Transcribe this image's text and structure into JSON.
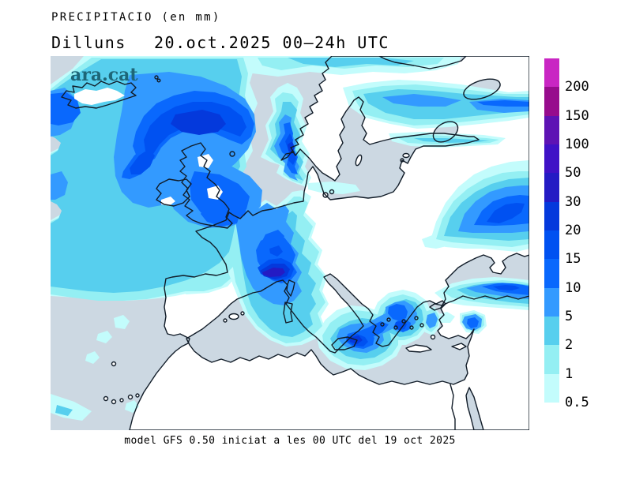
{
  "header": {
    "product": "PRECIPITACIO (en mm)",
    "day": "Dilluns",
    "datetime": "20.oct.2025 00–24h UTC"
  },
  "watermark": {
    "text": "ara.cat",
    "color": "#1e6678"
  },
  "footer": {
    "caption": "model GFS 0.50 iniciat a les 00 UTC del 19 oct 2025"
  },
  "map": {
    "sea_color": "#ccd8e2",
    "land_color": "#ffffff",
    "coast_color": "#111c28"
  },
  "legend": {
    "labels_top_to_bottom": [
      "200",
      "150",
      "100",
      "50",
      "30",
      "20",
      "15",
      "10",
      "5",
      "2",
      "1",
      "0.5"
    ]
  },
  "chart_data": {
    "type": "heatmap",
    "title": "PRECIPITACIO (en mm)",
    "valid_label": "Dilluns 20.oct.2025 00–24h UTC",
    "model_label": "model GFS 0.50 iniciat a les 00 UTC del 19 oct 2025",
    "units": "mm",
    "region": "Europe / North Atlantic / Mediterranean / North Africa",
    "scale_levels": [
      0.5,
      1,
      2,
      5,
      10,
      15,
      20,
      30,
      50,
      100,
      150,
      200
    ],
    "scale_colors": [
      "#c3fcfc",
      "#94eff3",
      "#57cfee",
      "#339aff",
      "#0968fd",
      "#0051f1",
      "#0439dc",
      "#241bc4",
      "#3f12c6",
      "#5e13b4",
      "#970c8d",
      "#c926c3"
    ],
    "legend_position": "right",
    "features": [
      {
        "region": "North Atlantic south-east of Iceland",
        "precip_mm": "20-30"
      },
      {
        "region": "Iceland west coast",
        "precip_mm": "10-15"
      },
      {
        "region": "British Isles and English Channel",
        "precip_mm": "10-15"
      },
      {
        "region": "Southwest Norway coast",
        "precip_mm": "15-20"
      },
      {
        "region": "Southern Finland / Gulf of Finland band",
        "precip_mm": "2-10"
      },
      {
        "region": "France (widespread)",
        "precip_mm": "5-15"
      },
      {
        "region": "Ligurian coast / NW Italy",
        "precip_mm": "30-50"
      },
      {
        "region": "Ionian Sea south-east of Sicily",
        "precip_mm": "15-20"
      },
      {
        "region": "Aegean Sea / Greece",
        "precip_mm": "10-15"
      },
      {
        "region": "Western Russia (north of Black Sea)",
        "precip_mm": "15-20"
      },
      {
        "region": "NE Turkey / Caucasus coast",
        "precip_mm": "10-15"
      },
      {
        "region": "Central Europe, Iberia interior, most of Turkey, North Africa",
        "precip_mm": "0"
      }
    ]
  }
}
